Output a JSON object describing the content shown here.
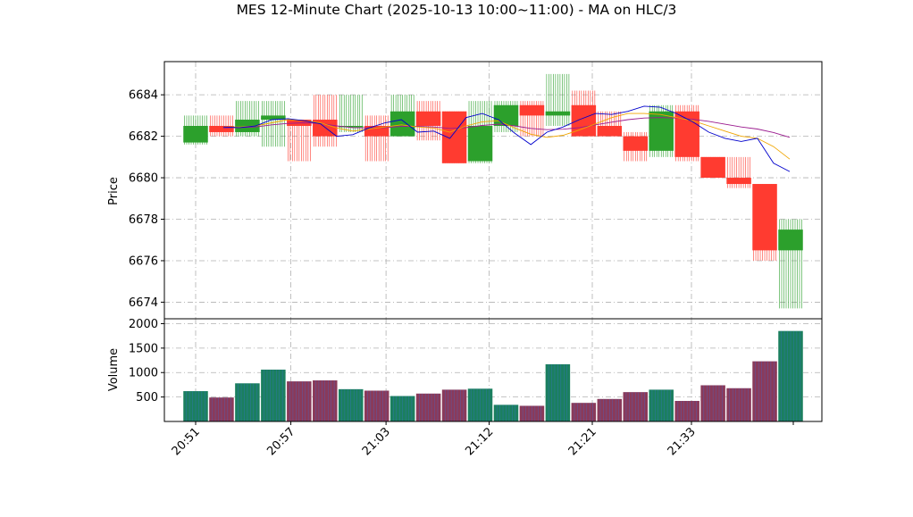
{
  "chart_data": [
    {
      "type": "candlestick",
      "title": "MES 12-Minute Chart (2025-10-13 10:00~11:00) - MA on HLC/3",
      "ylabel": "Price",
      "ylim": [
        6673.2,
        6685.6
      ],
      "yticks": [
        "6674",
        "6676",
        "6678",
        "6680",
        "6682",
        "6684"
      ],
      "xticks": [
        "20:51",
        "20:57",
        "21:03",
        "21:12",
        "21:21",
        "21:33"
      ],
      "grid": true,
      "colors": {
        "up": "#2ca02c",
        "down": "#ff3b30",
        "ma_fast": "#0000cc",
        "ma_slow": "#f0a500"
      },
      "candles": [
        {
          "t": 0,
          "open": 6681.7,
          "high": 6683.0,
          "low": 6681.6,
          "close": 6682.5
        },
        {
          "t": 1,
          "open": 6682.5,
          "high": 6683.0,
          "low": 6682.0,
          "close": 6682.2
        },
        {
          "t": 2,
          "open": 6682.2,
          "high": 6683.7,
          "low": 6682.0,
          "close": 6682.8
        },
        {
          "t": 3,
          "open": 6682.8,
          "high": 6683.7,
          "low": 6681.5,
          "close": 6683.0
        },
        {
          "t": 4,
          "open": 6682.8,
          "high": 6682.8,
          "low": 6680.8,
          "close": 6682.5
        },
        {
          "t": 5,
          "open": 6682.8,
          "high": 6684.0,
          "low": 6681.5,
          "close": 6682.0
        },
        {
          "t": 6,
          "open": 6682.5,
          "high": 6684.0,
          "low": 6682.2,
          "close": 6682.5
        },
        {
          "t": 7,
          "open": 6682.5,
          "high": 6683.0,
          "low": 6680.8,
          "close": 6682.0
        },
        {
          "t": 8,
          "open": 6682.0,
          "high": 6684.0,
          "low": 6682.0,
          "close": 6683.2
        },
        {
          "t": 9,
          "open": 6683.2,
          "high": 6683.7,
          "low": 6681.8,
          "close": 6682.5
        },
        {
          "t": 10,
          "open": 6683.2,
          "high": 6683.2,
          "low": 6680.7,
          "close": 6680.7
        },
        {
          "t": 11,
          "open": 6680.8,
          "high": 6683.7,
          "low": 6680.7,
          "close": 6682.5
        },
        {
          "t": 12,
          "open": 6682.5,
          "high": 6683.7,
          "low": 6682.2,
          "close": 6683.5
        },
        {
          "t": 13,
          "open": 6683.5,
          "high": 6683.7,
          "low": 6682.0,
          "close": 6683.0
        },
        {
          "t": 14,
          "open": 6683.0,
          "high": 6685.0,
          "low": 6682.5,
          "close": 6683.2
        },
        {
          "t": 15,
          "open": 6683.5,
          "high": 6684.2,
          "low": 6682.0,
          "close": 6682.0
        },
        {
          "t": 16,
          "open": 6682.5,
          "high": 6683.2,
          "low": 6682.0,
          "close": 6682.0
        },
        {
          "t": 17,
          "open": 6682.0,
          "high": 6682.2,
          "low": 6680.8,
          "close": 6681.3
        },
        {
          "t": 18,
          "open": 6681.3,
          "high": 6683.5,
          "low": 6681.0,
          "close": 6683.2
        },
        {
          "t": 19,
          "open": 6683.2,
          "high": 6683.5,
          "low": 6680.8,
          "close": 6681.0
        },
        {
          "t": 20,
          "open": 6681.0,
          "high": 6681.0,
          "low": 6680.0,
          "close": 6680.0
        },
        {
          "t": 21,
          "open": 6680.0,
          "high": 6681.0,
          "low": 6679.5,
          "close": 6679.7
        },
        {
          "t": 22,
          "open": 6679.7,
          "high": 6679.7,
          "low": 6676.0,
          "close": 6676.5
        },
        {
          "t": 23,
          "open": 6676.5,
          "high": 6678.0,
          "low": 6673.7,
          "close": 6677.5
        }
      ],
      "ma_fast": [
        6682.45,
        6682.42,
        6682.5,
        6682.8,
        6682.85,
        6682.75,
        6682.6,
        6682.0,
        6682.08,
        6682.4,
        6682.65,
        6682.8,
        6682.2,
        6682.25,
        6681.9,
        6682.9,
        6683.1,
        6682.8,
        6682.15,
        6681.6,
        6682.2,
        6682.45,
        6682.8,
        6683.1,
        6683.05,
        6683.2,
        6683.45,
        6683.4,
        6683.1,
        6682.7,
        6682.2,
        6681.9,
        6681.75,
        6681.9,
        6680.7,
        6680.3
      ],
      "ma_slow": [
        6682.45,
        6682.45,
        6682.5,
        6682.65,
        6682.8,
        6682.75,
        6682.65,
        6682.4,
        6682.25,
        6682.35,
        6682.45,
        6682.55,
        6682.45,
        6682.4,
        6682.2,
        6682.5,
        6682.7,
        6682.75,
        6682.4,
        6682.1,
        6681.95,
        6682.05,
        6682.3,
        6682.6,
        6682.9,
        6683.1,
        6683.1,
        6683.05,
        6682.9,
        6682.75,
        6682.5,
        6682.25,
        6682.0,
        6681.9,
        6681.5,
        6680.9
      ],
      "ma_slow2": [
        6682.4,
        6682.42,
        6682.45,
        6682.55,
        6682.62,
        6682.65,
        6682.62,
        6682.5,
        6682.42,
        6682.4,
        6682.42,
        6682.48,
        6682.48,
        6682.45,
        6682.38,
        6682.42,
        6682.52,
        6682.58,
        6682.5,
        6682.38,
        6682.32,
        6682.34,
        6682.42,
        6682.55,
        6682.68,
        6682.8,
        6682.88,
        6682.9,
        6682.88,
        6682.82,
        6682.72,
        6682.58,
        6682.45,
        6682.35,
        6682.18,
        6681.95
      ]
    },
    {
      "type": "bar",
      "ylabel": "Volume",
      "ylim": [
        0,
        2100
      ],
      "yticks": [
        "500",
        "1000",
        "1500",
        "2000"
      ],
      "colors": {
        "up": "#1b7f5f",
        "down": "#8a3a5a"
      },
      "values": [
        620,
        490,
        780,
        1060,
        820,
        840,
        660,
        630,
        520,
        570,
        650,
        670,
        340,
        320,
        1170,
        380,
        460,
        600,
        650,
        420,
        740,
        680,
        1230,
        1850
      ]
    }
  ]
}
